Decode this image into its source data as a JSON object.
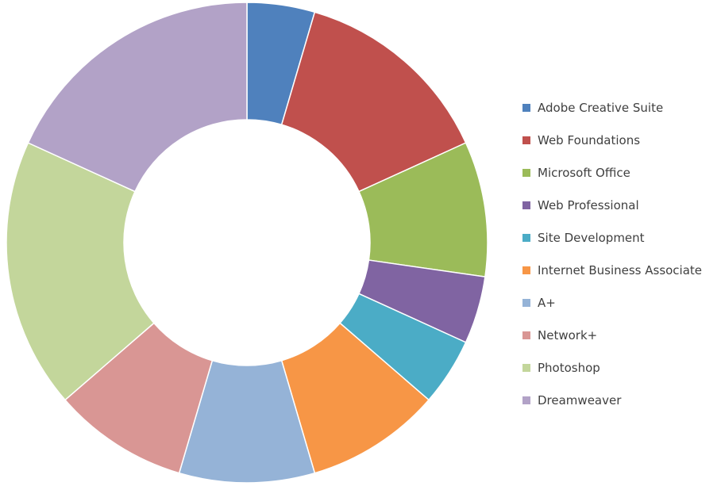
{
  "chart_data": {
    "type": "pie",
    "title": "",
    "donut": true,
    "legend_position": "right",
    "categories": [
      "Adobe Creative Suite",
      "Web Foundations",
      "Microsoft Office",
      "Web Professional",
      "Site Development",
      "Internet Business Associate",
      "A+",
      "Network+",
      "Photoshop",
      "Dreamweaver"
    ],
    "values": [
      5,
      15,
      10,
      5,
      5,
      10,
      10,
      10,
      20,
      20
    ],
    "colors": [
      "#4F81BD",
      "#C0504D",
      "#9BBB59",
      "#8064A2",
      "#4BACC6",
      "#F79646",
      "#95B3D7",
      "#D99694",
      "#C3D69B",
      "#B2A2C7"
    ]
  }
}
